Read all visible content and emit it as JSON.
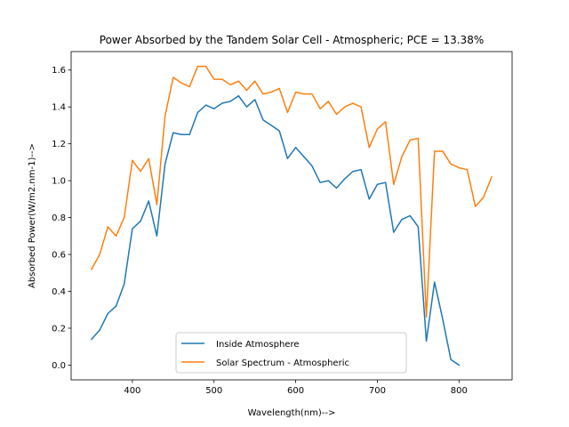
{
  "chart_data": {
    "type": "line",
    "title": "Power Absorbed by the Tandem Solar Cell - Atmospheric; PCE = 13.38%",
    "xlabel": "Wavelength(nm)-->",
    "ylabel": "Absorbed Power(W/m2.nm-1)-->",
    "xlim": [
      325,
      865
    ],
    "ylim": [
      -0.08,
      1.7
    ],
    "xticks": [
      400,
      500,
      600,
      700,
      800
    ],
    "yticks": [
      0.0,
      0.2,
      0.4,
      0.6,
      0.8,
      1.0,
      1.2,
      1.4,
      1.6
    ],
    "xtick_labels": [
      "400",
      "500",
      "600",
      "700",
      "800"
    ],
    "ytick_labels": [
      "0.0",
      "0.2",
      "0.4",
      "0.6",
      "0.8",
      "1.0",
      "1.2",
      "1.4",
      "1.6"
    ],
    "grid": false,
    "legend_position": "lower center",
    "series": [
      {
        "name": "Inside Atmosphere",
        "color": "#1f77b4",
        "x": [
          350,
          360,
          370,
          380,
          390,
          400,
          410,
          420,
          430,
          440,
          450,
          460,
          470,
          480,
          490,
          500,
          510,
          520,
          530,
          540,
          550,
          560,
          570,
          580,
          590,
          600,
          610,
          620,
          630,
          640,
          650,
          660,
          670,
          680,
          690,
          700,
          710,
          720,
          730,
          740,
          750,
          760,
          770,
          780,
          790,
          800
        ],
        "y": [
          0.14,
          0.19,
          0.28,
          0.32,
          0.44,
          0.74,
          0.78,
          0.89,
          0.7,
          1.09,
          1.26,
          1.25,
          1.25,
          1.37,
          1.41,
          1.39,
          1.42,
          1.43,
          1.46,
          1.4,
          1.44,
          1.33,
          1.3,
          1.27,
          1.12,
          1.18,
          1.13,
          1.08,
          0.99,
          1.0,
          0.96,
          1.01,
          1.05,
          1.06,
          0.9,
          0.98,
          0.99,
          0.72,
          0.79,
          0.81,
          0.75,
          0.13,
          0.45,
          0.25,
          0.03,
          0.0
        ]
      },
      {
        "name": "Solar Spectrum - Atmospheric",
        "color": "#ff7f0e",
        "x": [
          350,
          360,
          370,
          380,
          390,
          400,
          410,
          420,
          430,
          440,
          450,
          460,
          470,
          480,
          490,
          500,
          510,
          520,
          530,
          540,
          550,
          560,
          570,
          580,
          590,
          600,
          610,
          620,
          630,
          640,
          650,
          660,
          670,
          680,
          690,
          700,
          710,
          720,
          730,
          740,
          750,
          760,
          770,
          780,
          790,
          800,
          810,
          820,
          830,
          840
        ],
        "y": [
          0.52,
          0.6,
          0.75,
          0.7,
          0.8,
          1.11,
          1.05,
          1.12,
          0.87,
          1.35,
          1.56,
          1.53,
          1.51,
          1.62,
          1.62,
          1.55,
          1.55,
          1.52,
          1.54,
          1.49,
          1.54,
          1.47,
          1.48,
          1.5,
          1.37,
          1.48,
          1.47,
          1.47,
          1.39,
          1.43,
          1.36,
          1.4,
          1.42,
          1.4,
          1.18,
          1.28,
          1.32,
          0.98,
          1.13,
          1.22,
          1.23,
          0.26,
          1.16,
          1.16,
          1.09,
          1.07,
          1.06,
          0.86,
          0.91,
          1.02
        ]
      }
    ]
  }
}
